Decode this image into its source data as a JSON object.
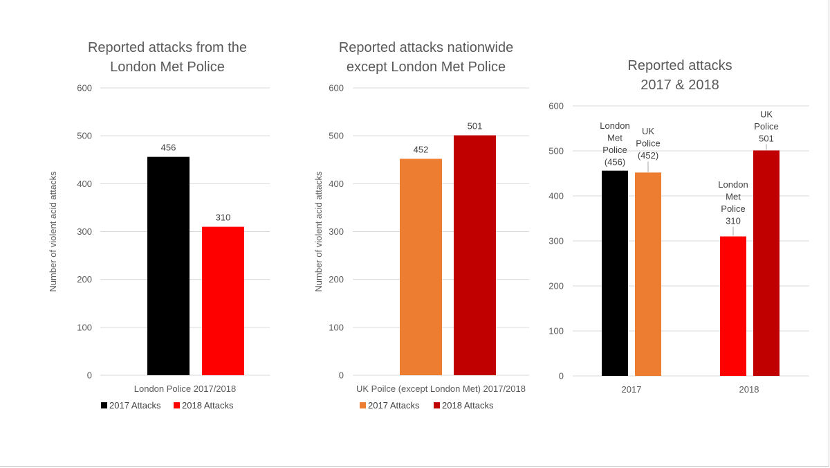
{
  "chart_data": [
    {
      "type": "bar",
      "title": [
        "Reported attacks from the",
        "London Met Police"
      ],
      "ylabel": "Number of violent acid attacks",
      "categories": [
        "London Police 2017/2018"
      ],
      "ylim": [
        0,
        600
      ],
      "yticks": [
        0,
        100,
        200,
        300,
        400,
        500,
        600
      ],
      "series": [
        {
          "name": "2017 Attacks",
          "color": "#000000",
          "values": [
            456
          ],
          "labels": [
            "456"
          ]
        },
        {
          "name": "2018 Attacks",
          "color": "#ff0000",
          "values": [
            310
          ],
          "labels": [
            "310"
          ]
        }
      ],
      "legend": "bottom"
    },
    {
      "type": "bar",
      "title": [
        "Reported attacks nationwide",
        "except London Met Police"
      ],
      "ylabel": "Number of violent acid attacks",
      "categories": [
        "UK Poilce (except London Met) 2017/2018"
      ],
      "ylim": [
        0,
        600
      ],
      "yticks": [
        0,
        100,
        200,
        300,
        400,
        500,
        600
      ],
      "series": [
        {
          "name": "2017 Attacks",
          "color": "#ed7d31",
          "values": [
            452
          ],
          "labels": [
            "452"
          ]
        },
        {
          "name": "2018 Attacks",
          "color": "#c00000",
          "values": [
            501
          ],
          "labels": [
            "501"
          ]
        }
      ],
      "legend": "bottom"
    },
    {
      "type": "bar",
      "title": [
        "Reported attacks",
        "2017 & 2018"
      ],
      "ylabel": "",
      "categories": [
        "2017",
        "2018"
      ],
      "ylim": [
        0,
        600
      ],
      "yticks": [
        0,
        100,
        200,
        300,
        400,
        500,
        600
      ],
      "bars": [
        {
          "category": "2017",
          "value": 456,
          "color": "#000000",
          "label": [
            "London",
            "Met",
            "Police",
            "(456)"
          ]
        },
        {
          "category": "2017",
          "value": 452,
          "color": "#ed7d31",
          "label": [
            "UK",
            "Police",
            "(452)"
          ]
        },
        {
          "category": "2018",
          "value": 310,
          "color": "#ff0000",
          "label": [
            "London",
            "Met",
            "Police",
            "310"
          ]
        },
        {
          "category": "2018",
          "value": 501,
          "color": "#c00000",
          "label": [
            "UK",
            "Police",
            "501"
          ]
        }
      ],
      "legend": "none"
    }
  ]
}
